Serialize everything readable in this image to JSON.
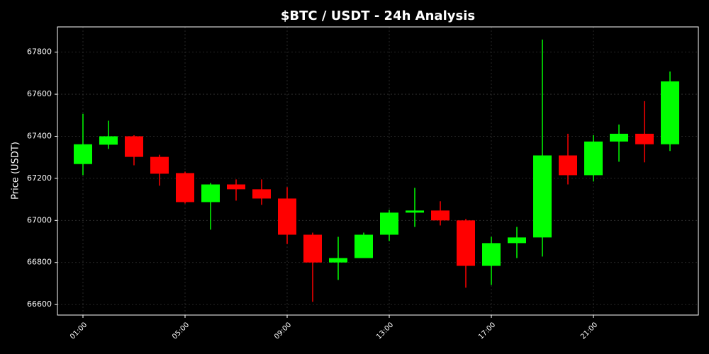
{
  "chart_data": {
    "type": "candlestick",
    "title": "$BTC / USDT - 24h Analysis",
    "y_label": "Price (USDT)",
    "categories": [
      "01:00",
      null,
      null,
      null,
      "05:00",
      null,
      null,
      null,
      "09:00",
      null,
      null,
      null,
      "13:00",
      null,
      null,
      null,
      "17:00",
      null,
      null,
      null,
      "21:00",
      null,
      null,
      null
    ],
    "open": [
      67268,
      67360,
      67400,
      67302,
      67225,
      67087,
      67171,
      67148,
      67104,
      66932,
      66800,
      66821,
      66932,
      67037,
      67047,
      67000,
      66784,
      66892,
      66919,
      67309,
      67215,
      67375,
      67412,
      67362
    ],
    "high": [
      67507,
      67474,
      67405,
      67312,
      67232,
      67178,
      67195,
      67195,
      67158,
      66942,
      66922,
      66942,
      67050,
      67155,
      67091,
      67007,
      66922,
      66969,
      67860,
      67412,
      67405,
      67456,
      67567,
      67708
    ],
    "low": [
      67215,
      67340,
      67262,
      67165,
      67080,
      66956,
      67094,
      67074,
      66888,
      66613,
      66717,
      66821,
      66902,
      66969,
      66976,
      66680,
      66693,
      66821,
      66828,
      67171,
      67185,
      67279,
      67276,
      67330
    ],
    "close": [
      67362,
      67400,
      67302,
      67222,
      67087,
      67171,
      67148,
      67104,
      66932,
      66800,
      66821,
      66932,
      67037,
      67047,
      67000,
      66784,
      66892,
      66919,
      67309,
      67215,
      67375,
      67412,
      67362,
      67661
    ],
    "up_color": "#00ff00",
    "down_color": "#ff0000",
    "ylim": [
      66550,
      67920
    ],
    "yticks": [
      66600,
      66800,
      67000,
      67200,
      67400,
      67600,
      67800
    ],
    "grid": true
  }
}
